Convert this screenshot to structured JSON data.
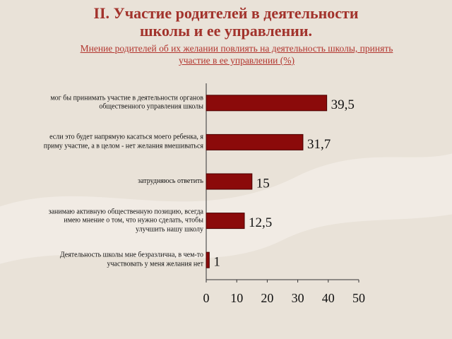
{
  "chart_data": {
    "type": "barh",
    "title": "II. Участие родителей в деятельности школы и ее управлении.",
    "subtitle": "Мнение родителей об их желании повлиять на деятельность школы, принять участие в ее управлении (%)",
    "categories": [
      "мог бы принимать участие в деятельности органов общественного управления школы",
      "если это будет напрямую касаться моего ребенка, я приму участие, а в целом - нет желания вмешиваться",
      "затрудняюсь ответить",
      "занимаю активную общественную позицию, всегда имею мнение о том, что нужно сделать, чтобы улучшить нашу школу",
      "Деятельность школы мне безразлична, в чем-то участвовать у меня желания нет"
    ],
    "values": [
      39.5,
      31.7,
      15,
      12.5,
      1
    ],
    "value_labels": [
      "39,5",
      "31,7",
      "15",
      "12,5",
      "1"
    ],
    "color": "#8b0a0a",
    "xlim": [
      0,
      50
    ],
    "xticks": [
      0,
      10,
      20,
      30,
      40,
      50
    ]
  }
}
